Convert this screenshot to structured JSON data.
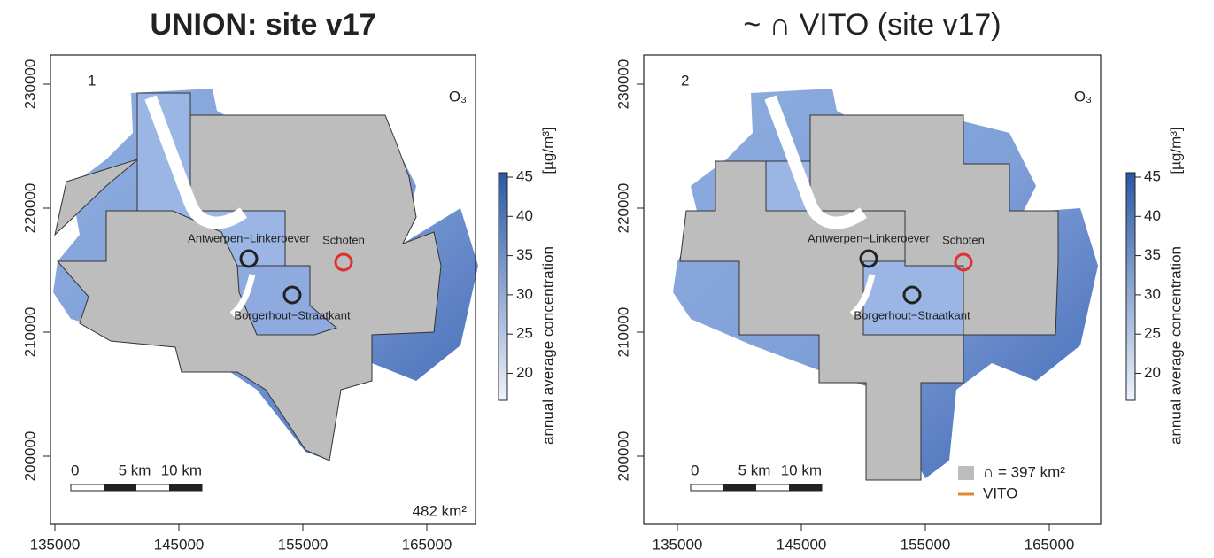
{
  "panels": [
    {
      "title": "UNION: site v17",
      "panel_number": "1",
      "pollutant": "O₃",
      "x_ticks": [
        135000,
        145000,
        155000,
        165000
      ],
      "y_ticks": [
        200000,
        210000,
        220000,
        230000
      ],
      "colorbar": {
        "ticks": [
          20,
          25,
          30,
          35,
          40,
          45
        ],
        "label": "annual average concentration",
        "unit": "[µg/m³]"
      },
      "stations": [
        {
          "label": "Antwerpen−Linkeroever"
        },
        {
          "label": "Borgerhout−Straatkant"
        },
        {
          "label": "Schoten"
        }
      ],
      "scale_bar": [
        "0",
        "5 km",
        "10 km"
      ],
      "area": "482 km²"
    },
    {
      "title": "~ ∩ VITO (site v17)",
      "panel_number": "2",
      "pollutant": "O₃",
      "x_ticks": [
        135000,
        145000,
        155000,
        165000
      ],
      "y_ticks": [
        200000,
        210000,
        220000,
        230000
      ],
      "colorbar": {
        "ticks": [
          20,
          25,
          30,
          35,
          40,
          45
        ],
        "label": "annual average concentration",
        "unit": "[µg/m³]"
      },
      "stations": [
        {
          "label": "Antwerpen−Linkeroever"
        },
        {
          "label": "Borgerhout−Straatkant"
        },
        {
          "label": "Schoten"
        }
      ],
      "scale_bar": [
        "0",
        "5 km",
        "10 km"
      ],
      "legend": [
        "∩ = 397 km²",
        "VITO"
      ]
    }
  ]
}
